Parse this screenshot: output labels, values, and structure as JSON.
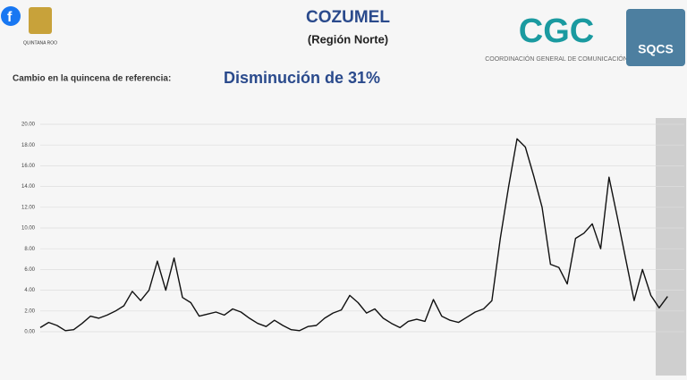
{
  "header": {
    "title": "COZUMEL",
    "subtitle": "(Región Norte)",
    "state_label": "QUINTANA ROO",
    "cgc": "CGC",
    "cgc_caption": "COORDINACIÓN GENERAL DE COMUNICACIÓN",
    "sqcs": "SQCS"
  },
  "summary": {
    "label": "Cambio en la quincena de referencia:",
    "value": "Disminución de 31%"
  },
  "chart_data": {
    "type": "line",
    "color": "#111111",
    "grid": true,
    "categories": [
      null,
      null,
      null,
      null,
      null,
      null,
      null,
      null,
      null,
      null,
      null,
      null,
      null,
      null,
      null,
      null,
      null,
      null,
      null,
      null,
      null,
      null,
      null,
      null,
      null,
      null,
      null,
      null,
      null,
      null,
      null,
      null,
      null,
      null,
      null,
      null,
      null,
      null,
      null,
      null,
      null,
      null,
      null,
      null,
      null,
      null,
      null,
      null,
      null,
      null,
      null,
      null,
      null,
      null,
      null,
      null,
      null,
      null,
      null,
      null,
      null,
      null,
      null,
      null,
      null,
      null,
      null,
      null,
      null,
      null,
      null,
      null,
      null,
      null,
      null,
      null,
      null,
      null
    ],
    "values": [
      0.4,
      0.9,
      0.6,
      0.1,
      0.2,
      0.8,
      1.5,
      1.3,
      1.6,
      2.0,
      2.5,
      3.9,
      3.0,
      4.0,
      6.8,
      4.0,
      7.1,
      3.3,
      2.8,
      1.5,
      1.7,
      1.9,
      1.6,
      2.2,
      1.9,
      1.3,
      0.8,
      0.5,
      1.1,
      0.6,
      0.2,
      0.1,
      0.5,
      0.6,
      1.3,
      1.8,
      2.1,
      3.5,
      2.8,
      1.8,
      2.2,
      1.3,
      0.8,
      0.4,
      1.0,
      1.2,
      1.0,
      3.1,
      1.5,
      1.1,
      0.9,
      1.4,
      1.9,
      2.2,
      3.0,
      9.0,
      14.0,
      18.6,
      17.8,
      15.0,
      12.0,
      6.5,
      6.2,
      4.6,
      9.0,
      9.5,
      10.4,
      8.0,
      14.9,
      11.0,
      7.0,
      3.0,
      6.0,
      3.5,
      2.3,
      3.4,
      null,
      null
    ],
    "ylim": [
      0,
      20
    ],
    "yticks": [
      {
        "value": 0,
        "label": "0.00"
      },
      {
        "value": 2,
        "label": "2.00"
      },
      {
        "value": 4,
        "label": "4.00"
      },
      {
        "value": 6,
        "label": "6.00"
      },
      {
        "value": 8,
        "label": "8.00"
      },
      {
        "value": 10,
        "label": "10.00"
      },
      {
        "value": 12,
        "label": "12.00"
      },
      {
        "value": 14,
        "label": "14.00"
      },
      {
        "value": 16,
        "label": "16.00"
      },
      {
        "value": 18,
        "label": "18.00"
      },
      {
        "value": 20,
        "label": "20.00"
      }
    ]
  }
}
